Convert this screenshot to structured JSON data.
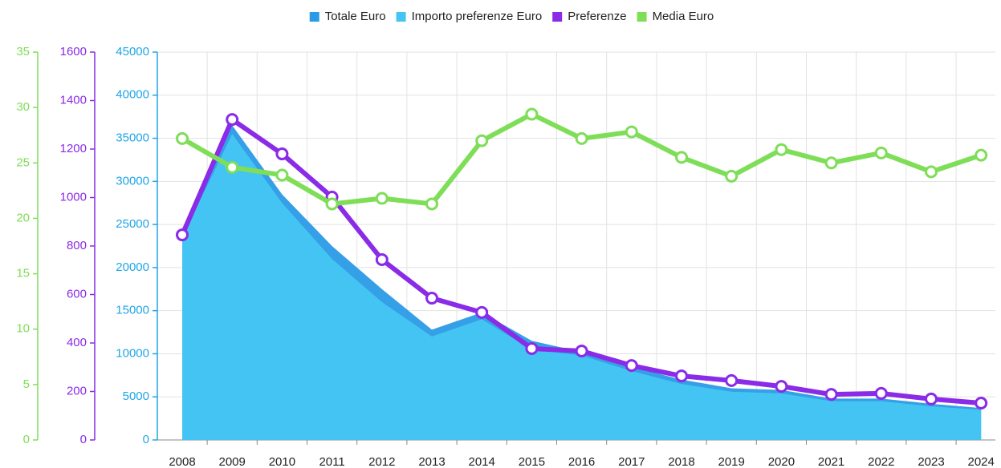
{
  "chart_data": {
    "type": "line",
    "categories": [
      "2008",
      "2009",
      "2010",
      "2011",
      "2012",
      "2013",
      "2014",
      "2015",
      "2016",
      "2017",
      "2018",
      "2019",
      "2020",
      "2021",
      "2022",
      "2023",
      "2024"
    ],
    "series": [
      {
        "name": "Totale Euro",
        "color": "#2a9ae6",
        "kind": "area",
        "axis": "y",
        "values": [
          24500,
          36500,
          28500,
          22500,
          17500,
          12800,
          14800,
          11500,
          10200,
          8500,
          7000,
          6000,
          5800,
          4800,
          4800,
          4200,
          3700
        ]
      },
      {
        "name": "Importo preferenze Euro",
        "color": "#45c6f2",
        "kind": "area",
        "axis": "y",
        "values": [
          23500,
          35500,
          27500,
          21000,
          16000,
          12000,
          14000,
          10500,
          9800,
          8000,
          6500,
          5600,
          5400,
          4500,
          4500,
          3900,
          3500
        ]
      },
      {
        "name": "Preferenze",
        "color": "#8a2be8",
        "kind": "line",
        "axis": "y2",
        "values": [
          846,
          1322,
          1180,
          1002,
          744,
          585,
          526,
          377,
          367,
          307,
          264,
          245,
          221,
          188,
          192,
          169,
          152
        ]
      },
      {
        "name": "Media Euro",
        "color": "#7fde58",
        "kind": "line",
        "axis": "y3",
        "values": [
          27.2,
          24.6,
          23.9,
          21.3,
          21.8,
          21.3,
          27.0,
          29.4,
          27.2,
          27.8,
          25.5,
          23.8,
          26.2,
          25.0,
          25.9,
          24.2,
          25.7
        ]
      }
    ],
    "ylim": [
      0,
      45000
    ],
    "yticks": [
      0,
      5000,
      10000,
      15000,
      20000,
      25000,
      30000,
      35000,
      40000,
      45000
    ],
    "y2lim": [
      0,
      1600
    ],
    "y2ticks": [
      0,
      200,
      400,
      600,
      800,
      1000,
      1200,
      1400,
      1600
    ],
    "y3lim": [
      0,
      35
    ],
    "y3ticks": [
      0,
      5,
      10,
      15,
      20,
      25,
      30,
      35
    ],
    "axis_colors": {
      "y": "#1ea6e6",
      "y2": "#8a2be8",
      "y3": "#7fde58"
    },
    "grid": true,
    "legend": "top"
  }
}
